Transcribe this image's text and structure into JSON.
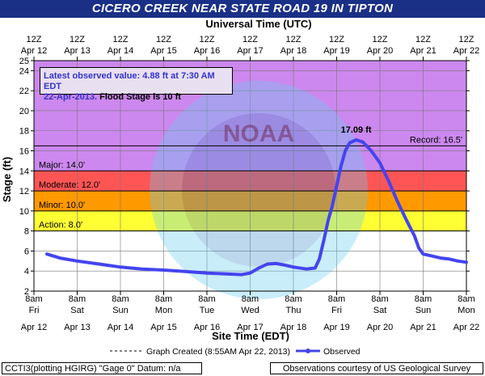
{
  "title": "CICERO CREEK NEAR STATE ROAD 19 IN TIPTON",
  "top_axis_title": "Universal Time (UTC)",
  "bottom_axis_title": "Site Time (EDT)",
  "y_axis_title": "Stage (ft)",
  "info": {
    "line1": "Latest observed value: 4.88 ft at 7:30 AM EDT",
    "line2_date": "22-Apr-2013.",
    "line2_flood": "Flood Stage is 10 ft"
  },
  "legend": {
    "created": "Graph Created (8:55AM Apr 22, 2013)",
    "observed": "Observed"
  },
  "footer": {
    "left": "CCTI3(plotting HGIRG) \"Gage 0\" Datum: n/a",
    "right": "Observations courtesy of US Geological Survey"
  },
  "colors": {
    "title_bg": "#1a2f86",
    "record_band": "#cc88ee",
    "major_band": "#cc88ee",
    "moderate_band": "#ff5555",
    "minor_band": "#ff9900",
    "action_band": "#ffff33",
    "observed_line": "#4444ee"
  },
  "chart_data": {
    "type": "line",
    "ylim": [
      2,
      25
    ],
    "y_ticks": [
      2,
      4,
      6,
      8,
      10,
      12,
      14,
      16,
      18,
      20,
      22,
      24,
      25
    ],
    "top_ticks": [
      {
        "hour": "12Z",
        "date": "Apr 12"
      },
      {
        "hour": "12Z",
        "date": "Apr 13"
      },
      {
        "hour": "12Z",
        "date": "Apr 14"
      },
      {
        "hour": "12Z",
        "date": "Apr 15"
      },
      {
        "hour": "12Z",
        "date": "Apr 16"
      },
      {
        "hour": "12Z",
        "date": "Apr 17"
      },
      {
        "hour": "12Z",
        "date": "Apr 18"
      },
      {
        "hour": "12Z",
        "date": "Apr 19"
      },
      {
        "hour": "12Z",
        "date": "Apr 20"
      },
      {
        "hour": "12Z",
        "date": "Apr 21"
      },
      {
        "hour": "12Z",
        "date": "Apr 22"
      }
    ],
    "bottom_ticks": [
      {
        "time": "8am",
        "day": "Fri",
        "date": "Apr 12"
      },
      {
        "time": "8am",
        "day": "Sat",
        "date": "Apr 13"
      },
      {
        "time": "8am",
        "day": "Sun",
        "date": "Apr 14"
      },
      {
        "time": "8am",
        "day": "Mon",
        "date": "Apr 15"
      },
      {
        "time": "8am",
        "day": "Tue",
        "date": "Apr 16"
      },
      {
        "time": "8am",
        "day": "Wed",
        "date": "Apr 17"
      },
      {
        "time": "8am",
        "day": "Thu",
        "date": "Apr 18"
      },
      {
        "time": "8am",
        "day": "Fri",
        "date": "Apr 19"
      },
      {
        "time": "8am",
        "day": "Sat",
        "date": "Apr 20"
      },
      {
        "time": "8am",
        "day": "Sun",
        "date": "Apr 21"
      },
      {
        "time": "8am",
        "day": "Mon",
        "date": "Apr 22"
      }
    ],
    "x_start": "Apr 12 8am EDT",
    "x_end": "Apr 22 8am EDT",
    "thresholds": [
      {
        "name": "Record",
        "label": "Record: 16.5'",
        "value": 16.5
      },
      {
        "name": "Major",
        "label": "Major: 14.0'",
        "value": 14.0
      },
      {
        "name": "Moderate",
        "label": "Moderate: 12.0'",
        "value": 12.0
      },
      {
        "name": "Minor",
        "label": "Minor: 10.0'",
        "value": 10.0
      },
      {
        "name": "Action",
        "label": "Action: 8.0'",
        "value": 8.0
      }
    ],
    "peak_label": "17.09 ft",
    "peak": {
      "day": "Apr 19",
      "x_day": 7.45,
      "y": 17.09
    },
    "series": [
      {
        "name": "Observed",
        "points": [
          [
            0.3,
            5.7
          ],
          [
            0.6,
            5.3
          ],
          [
            1.0,
            5.0
          ],
          [
            1.5,
            4.7
          ],
          [
            2.0,
            4.4
          ],
          [
            2.5,
            4.2
          ],
          [
            3.0,
            4.1
          ],
          [
            3.5,
            3.95
          ],
          [
            4.0,
            3.8
          ],
          [
            4.5,
            3.7
          ],
          [
            4.8,
            3.65
          ],
          [
            5.0,
            3.8
          ],
          [
            5.2,
            4.3
          ],
          [
            5.4,
            4.7
          ],
          [
            5.6,
            4.75
          ],
          [
            5.8,
            4.6
          ],
          [
            6.0,
            4.4
          ],
          [
            6.3,
            4.2
          ],
          [
            6.5,
            4.3
          ],
          [
            6.6,
            5.2
          ],
          [
            6.7,
            7.0
          ],
          [
            6.8,
            9.0
          ],
          [
            6.9,
            10.5
          ],
          [
            7.0,
            12.5
          ],
          [
            7.1,
            14.5
          ],
          [
            7.2,
            16.0
          ],
          [
            7.3,
            16.8
          ],
          [
            7.45,
            17.09
          ],
          [
            7.6,
            16.9
          ],
          [
            7.8,
            16.0
          ],
          [
            8.0,
            14.8
          ],
          [
            8.2,
            13.0
          ],
          [
            8.4,
            11.0
          ],
          [
            8.6,
            9.2
          ],
          [
            8.8,
            7.5
          ],
          [
            8.9,
            6.3
          ],
          [
            9.0,
            5.7
          ],
          [
            9.2,
            5.5
          ],
          [
            9.4,
            5.3
          ],
          [
            9.6,
            5.2
          ],
          [
            9.8,
            5.0
          ],
          [
            10.0,
            4.88
          ]
        ]
      }
    ]
  }
}
